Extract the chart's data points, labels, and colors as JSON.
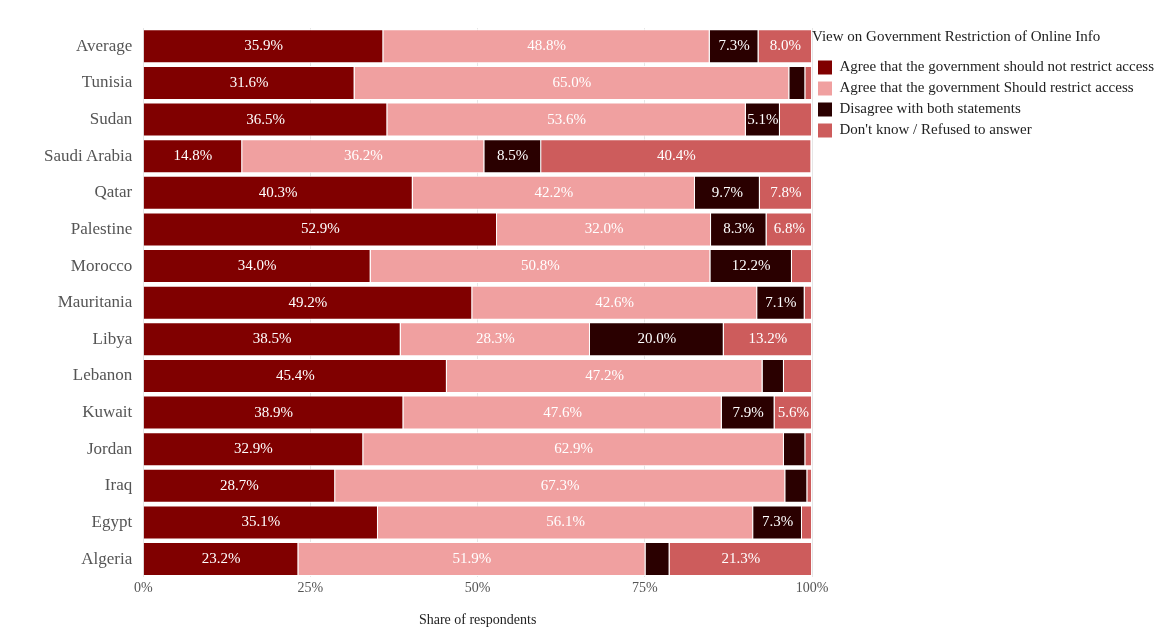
{
  "chart_data": {
    "type": "bar",
    "orientation": "horizontal",
    "stacked": true,
    "xlabel": "Share of respondents",
    "legend_title": "View on Government Restriction of Online Info",
    "legend": "top right",
    "grid": "x",
    "categories": [
      "Average",
      "Tunisia",
      "Sudan",
      "Saudi Arabia",
      "Qatar",
      "Palestine",
      "Morocco",
      "Mauritania",
      "Libya",
      "Lebanon",
      "Kuwait",
      "Jordan",
      "Iraq",
      "Egypt",
      "Algeria"
    ],
    "xlim": [
      0,
      100
    ],
    "xticks": [
      {
        "value": 0,
        "label": "0%"
      },
      {
        "value": 25,
        "label": "25%"
      },
      {
        "value": 50,
        "label": "50%"
      },
      {
        "value": 75,
        "label": "75%"
      },
      {
        "value": 100,
        "label": "100%"
      }
    ],
    "series": [
      {
        "name": "Agree that the government should not restrict access",
        "color": "#800000",
        "values": [
          35.9,
          31.6,
          36.5,
          14.8,
          40.3,
          52.9,
          34.0,
          49.2,
          38.5,
          45.4,
          38.9,
          32.9,
          28.7,
          35.1,
          23.2
        ],
        "value_labels": [
          "35.9%",
          "31.6%",
          "36.5%",
          "14.8%",
          "40.3%",
          "52.9%",
          "34.0%",
          "49.2%",
          "38.5%",
          "45.4%",
          "38.9%",
          "32.9%",
          "28.7%",
          "35.1%",
          "23.2%"
        ]
      },
      {
        "name": "Agree that the government Should restrict access",
        "color": "#f0a0a0",
        "values": [
          48.8,
          65.0,
          53.6,
          36.2,
          42.2,
          32.0,
          50.8,
          42.6,
          28.3,
          47.2,
          47.6,
          62.9,
          67.3,
          56.1,
          51.9
        ],
        "value_labels": [
          "48.8%",
          "65.0%",
          "53.6%",
          "36.2%",
          "42.2%",
          "32.0%",
          "50.8%",
          "42.6%",
          "28.3%",
          "47.2%",
          "47.6%",
          "62.9%",
          "67.3%",
          "56.1%",
          "51.9%"
        ]
      },
      {
        "name": "Disagree with both statements",
        "color": "#2a0000",
        "values": [
          7.3,
          2.4,
          5.1,
          8.5,
          9.7,
          8.3,
          12.2,
          7.1,
          20.0,
          3.2,
          7.9,
          3.2,
          3.3,
          7.3,
          3.6
        ],
        "value_labels": [
          "7.3%",
          null,
          "5.1%",
          "8.5%",
          "9.7%",
          "8.3%",
          "12.2%",
          "7.1%",
          "20.0%",
          null,
          "7.9%",
          null,
          null,
          "7.3%",
          null
        ]
      },
      {
        "name": "Don't know / Refused to answer",
        "color": "#cd5c5c",
        "values": [
          8.0,
          1.0,
          4.8,
          40.4,
          7.8,
          6.8,
          3.0,
          1.1,
          13.2,
          4.2,
          5.6,
          1.0,
          0.7,
          1.5,
          21.3
        ],
        "value_labels": [
          "8.0%",
          null,
          null,
          "40.4%",
          "7.8%",
          "6.8%",
          null,
          null,
          "13.2%",
          null,
          "5.6%",
          null,
          null,
          null,
          "21.3%"
        ]
      }
    ]
  }
}
